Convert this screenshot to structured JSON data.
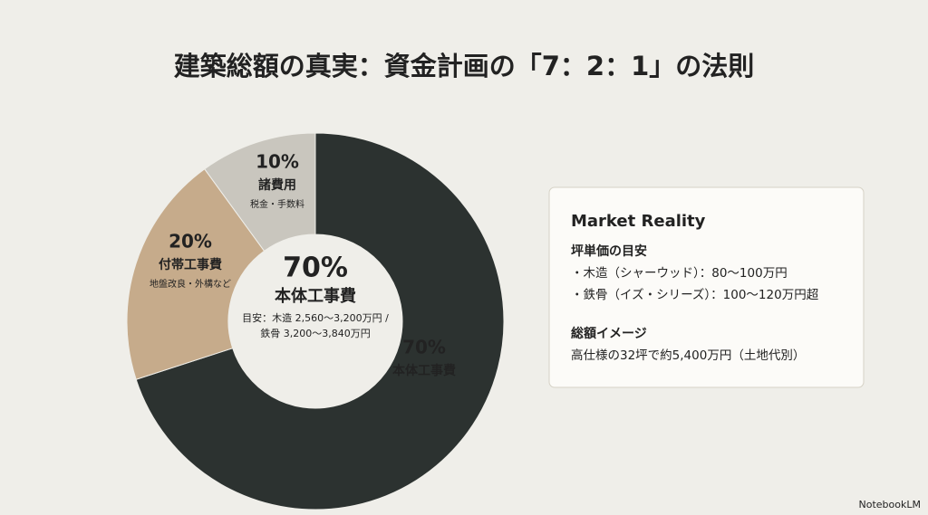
{
  "chart_data": {
    "type": "pie",
    "title": "建築総額の真実：資金計画の「7：2：1」の法則",
    "categories": [
      "本体工事費",
      "付帯工事費",
      "諸費用"
    ],
    "values": [
      70,
      20,
      10
    ],
    "value_labels": [
      "70%",
      "20%",
      "10%"
    ],
    "colors": [
      "#2c3230",
      "#c6ab8b",
      "#c9c6be"
    ],
    "notes": [
      null,
      "地盤改良・外構など",
      "税金・手数料"
    ],
    "center_note": [
      "目安：木造 2,560〜3,200万円 /",
      "鉄骨 3,200〜3,840万円"
    ]
  },
  "card": {
    "title": "Market Reality",
    "sections": [
      {
        "heading": "坪単価の目安",
        "lines": [
          "・木造（シャーウッド）：80〜100万円",
          "・鉄骨（イズ・シリーズ）：100〜120万円超"
        ]
      },
      {
        "heading": "総額イメージ",
        "lines": [
          "高仕様の32坪で約5,400万円（土地代別）"
        ]
      }
    ]
  },
  "footer": "NotebookLM"
}
